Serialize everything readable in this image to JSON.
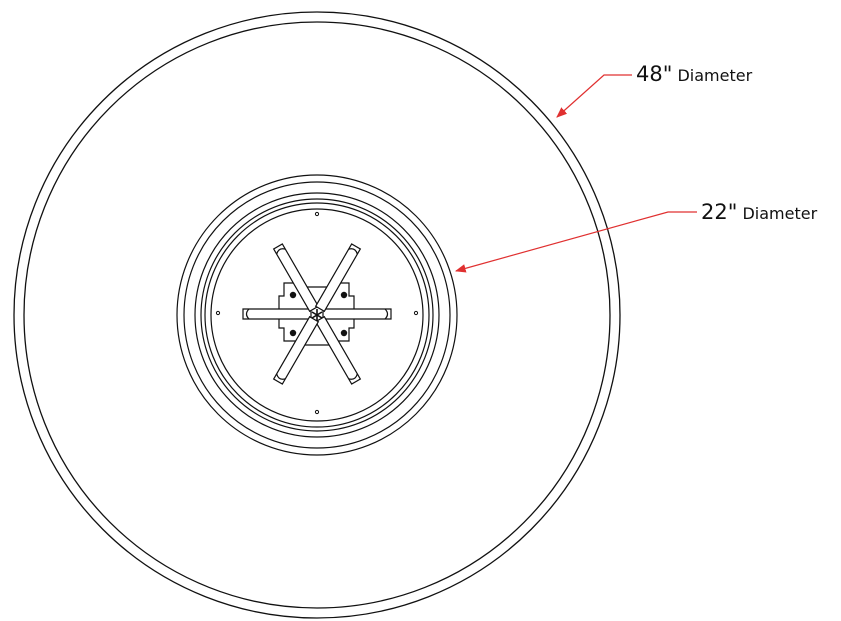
{
  "callouts": {
    "outer": {
      "size": "48\"",
      "label": "Diameter"
    },
    "inner": {
      "size": "22\"",
      "label": "Diameter"
    }
  },
  "colors": {
    "line": "#111111",
    "leader": "#e03030",
    "background": "#ffffff"
  }
}
